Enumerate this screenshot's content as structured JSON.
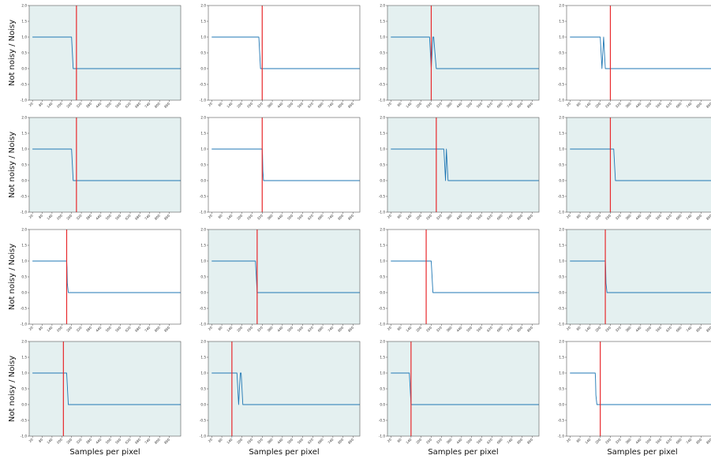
{
  "figure": {
    "ylabel": "Not noisy / Noisy",
    "xlabel": "Samples per pixel",
    "ylim": [
      -1.0,
      2.0
    ],
    "yticks": [
      "-1.0",
      "-0.5",
      "0.0",
      "0.5",
      "1.0",
      "1.5",
      "2.0"
    ],
    "colors": {
      "line": "#1f77b4",
      "marker": "#e8282b",
      "shaded_bg": "#e4f0f0",
      "plain_bg": "#ffffff",
      "frame": "#555555"
    }
  },
  "chart_data": [
    {
      "type": "line",
      "row": 0,
      "col": 0,
      "shaded": true,
      "marker_x": 290,
      "xticks": [
        20,
        80,
        140,
        200,
        260,
        320,
        380,
        440,
        500,
        560,
        620,
        680,
        740,
        800,
        860
      ],
      "xlim": [
        0,
        930
      ],
      "series": [
        {
          "x": [
            20,
            260,
            265,
            270,
            930
          ],
          "y": [
            1,
            1,
            0.5,
            0,
            0
          ]
        }
      ]
    },
    {
      "type": "line",
      "row": 0,
      "col": 1,
      "shaded": false,
      "marker_x": 320,
      "xticks": [
        20,
        80,
        140,
        200,
        260,
        320,
        380,
        440,
        500,
        560,
        620,
        680,
        740,
        800,
        860
      ],
      "xlim": [
        0,
        900
      ],
      "series": [
        {
          "x": [
            20,
            300,
            305,
            310,
            900
          ],
          "y": [
            1,
            1,
            0.5,
            0,
            0
          ]
        }
      ]
    },
    {
      "type": "line",
      "row": 0,
      "col": 2,
      "shaded": true,
      "marker_x": 260,
      "xticks": [
        20,
        80,
        140,
        200,
        260,
        320,
        380,
        440,
        500,
        560,
        620,
        680,
        740,
        800,
        860
      ],
      "xlim": [
        0,
        900
      ],
      "series": [
        {
          "x": [
            20,
            250,
            255,
            260,
            265,
            270,
            275,
            282,
            290,
            900
          ],
          "y": [
            1,
            1,
            0.5,
            0,
            0.5,
            1,
            1,
            0.5,
            0,
            0
          ]
        }
      ]
    },
    {
      "type": "line",
      "row": 0,
      "col": 3,
      "shaded": false,
      "marker_x": 260,
      "xticks": [
        20,
        80,
        140,
        200,
        260,
        320,
        380,
        440,
        500,
        560,
        620,
        680,
        740,
        800,
        860
      ],
      "xlim": [
        0,
        900
      ],
      "series": [
        {
          "x": [
            20,
            200,
            205,
            210,
            215,
            220,
            225,
            230,
            900
          ],
          "y": [
            1,
            1,
            0.5,
            0,
            0.5,
            1,
            0.5,
            0,
            0
          ]
        }
      ]
    },
    {
      "type": "line",
      "row": 1,
      "col": 0,
      "shaded": true,
      "marker_x": 290,
      "xticks": [
        20,
        80,
        140,
        200,
        260,
        320,
        380,
        440,
        500,
        560,
        620,
        680,
        740,
        800,
        860
      ],
      "xlim": [
        0,
        930
      ],
      "series": [
        {
          "x": [
            20,
            260,
            265,
            270,
            930
          ],
          "y": [
            1,
            1,
            0.5,
            0,
            0
          ]
        }
      ]
    },
    {
      "type": "line",
      "row": 1,
      "col": 1,
      "shaded": false,
      "marker_x": 320,
      "xticks": [
        20,
        80,
        140,
        200,
        260,
        320,
        380,
        440,
        500,
        560,
        620,
        680,
        740,
        800,
        860
      ],
      "xlim": [
        0,
        900
      ],
      "series": [
        {
          "x": [
            20,
            320,
            322,
            324,
            328,
            900
          ],
          "y": [
            1,
            1,
            0.8,
            0.3,
            0,
            0
          ]
        }
      ]
    },
    {
      "type": "line",
      "row": 1,
      "col": 2,
      "shaded": true,
      "marker_x": 290,
      "xticks": [
        20,
        80,
        140,
        200,
        260,
        320,
        380,
        440,
        500,
        560,
        620,
        680,
        740,
        800,
        860
      ],
      "xlim": [
        0,
        900
      ],
      "series": [
        {
          "x": [
            20,
            335,
            340,
            345,
            350,
            355,
            360,
            900
          ],
          "y": [
            1,
            1,
            0.5,
            0,
            1,
            0.5,
            0,
            0
          ]
        }
      ]
    },
    {
      "type": "line",
      "row": 1,
      "col": 3,
      "shaded": true,
      "marker_x": 260,
      "xticks": [
        20,
        80,
        140,
        200,
        260,
        320,
        380,
        440,
        500,
        560,
        620,
        680,
        740,
        800,
        860
      ],
      "xlim": [
        0,
        900
      ],
      "series": [
        {
          "x": [
            20,
            280,
            285,
            290,
            900
          ],
          "y": [
            1,
            1,
            0.5,
            0,
            0
          ]
        }
      ]
    },
    {
      "type": "line",
      "row": 2,
      "col": 0,
      "shaded": false,
      "marker_x": 230,
      "xticks": [
        20,
        80,
        140,
        200,
        260,
        320,
        380,
        440,
        500,
        560,
        620,
        680,
        740,
        800,
        860
      ],
      "xlim": [
        0,
        930
      ],
      "series": [
        {
          "x": [
            20,
            230,
            232,
            234,
            240,
            930
          ],
          "y": [
            1,
            1,
            0.8,
            0.3,
            0,
            0
          ]
        }
      ]
    },
    {
      "type": "line",
      "row": 2,
      "col": 1,
      "shaded": true,
      "marker_x": 290,
      "xticks": [
        20,
        80,
        140,
        200,
        260,
        320,
        380,
        440,
        500,
        560,
        620,
        680,
        740,
        800,
        860
      ],
      "xlim": [
        0,
        900
      ],
      "series": [
        {
          "x": [
            20,
            280,
            285,
            290,
            900
          ],
          "y": [
            1,
            1,
            0.5,
            0,
            0
          ]
        }
      ]
    },
    {
      "type": "line",
      "row": 2,
      "col": 2,
      "shaded": false,
      "marker_x": 230,
      "xticks": [
        20,
        80,
        140,
        200,
        260,
        320,
        380,
        440,
        500,
        560,
        620,
        680,
        740,
        800,
        860
      ],
      "xlim": [
        0,
        900
      ],
      "series": [
        {
          "x": [
            20,
            260,
            265,
            270,
            900
          ],
          "y": [
            1,
            1,
            0.5,
            0,
            0
          ]
        }
      ]
    },
    {
      "type": "line",
      "row": 2,
      "col": 3,
      "shaded": true,
      "marker_x": 230,
      "xticks": [
        20,
        80,
        140,
        200,
        260,
        320,
        380,
        440,
        500,
        560,
        620,
        680,
        740,
        800,
        860
      ],
      "xlim": [
        0,
        900
      ],
      "series": [
        {
          "x": [
            20,
            230,
            232,
            234,
            240,
            900
          ],
          "y": [
            1,
            1,
            0.8,
            0.3,
            0,
            0
          ]
        }
      ]
    },
    {
      "type": "line",
      "row": 3,
      "col": 0,
      "shaded": true,
      "marker_x": 210,
      "xticks": [
        20,
        80,
        140,
        200,
        260,
        320,
        380,
        440,
        500,
        560,
        620,
        680,
        740,
        800,
        860
      ],
      "xlim": [
        0,
        930
      ],
      "series": [
        {
          "x": [
            20,
            230,
            235,
            240,
            930
          ],
          "y": [
            1,
            1,
            0.5,
            0,
            0
          ]
        }
      ]
    },
    {
      "type": "line",
      "row": 3,
      "col": 1,
      "shaded": true,
      "marker_x": 140,
      "xticks": [
        20,
        80,
        140,
        200,
        260,
        320,
        380,
        440,
        500,
        560,
        620,
        680,
        740,
        800,
        860
      ],
      "xlim": [
        0,
        900
      ],
      "series": [
        {
          "x": [
            20,
            170,
            175,
            180,
            185,
            190,
            195,
            200,
            205,
            900
          ],
          "y": [
            1,
            1,
            0.5,
            0,
            0.5,
            1,
            1,
            0.5,
            0,
            0
          ]
        }
      ]
    },
    {
      "type": "line",
      "row": 3,
      "col": 2,
      "shaded": true,
      "marker_x": 140,
      "xticks": [
        20,
        80,
        140,
        200,
        260,
        320,
        380,
        440,
        500,
        560,
        620,
        680,
        740,
        800,
        860
      ],
      "xlim": [
        0,
        900
      ],
      "series": [
        {
          "x": [
            20,
            130,
            135,
            140,
            900
          ],
          "y": [
            1,
            1,
            0.5,
            0,
            0
          ]
        }
      ]
    },
    {
      "type": "line",
      "row": 3,
      "col": 3,
      "shaded": false,
      "marker_x": 200,
      "xticks": [
        20,
        80,
        140,
        200,
        260,
        320,
        380,
        440,
        500,
        560,
        620,
        680,
        740,
        800,
        860
      ],
      "xlim": [
        0,
        900
      ],
      "series": [
        {
          "x": [
            20,
            170,
            172,
            174,
            180,
            900
          ],
          "y": [
            1,
            1,
            0.8,
            0.3,
            0,
            0
          ]
        }
      ]
    }
  ]
}
